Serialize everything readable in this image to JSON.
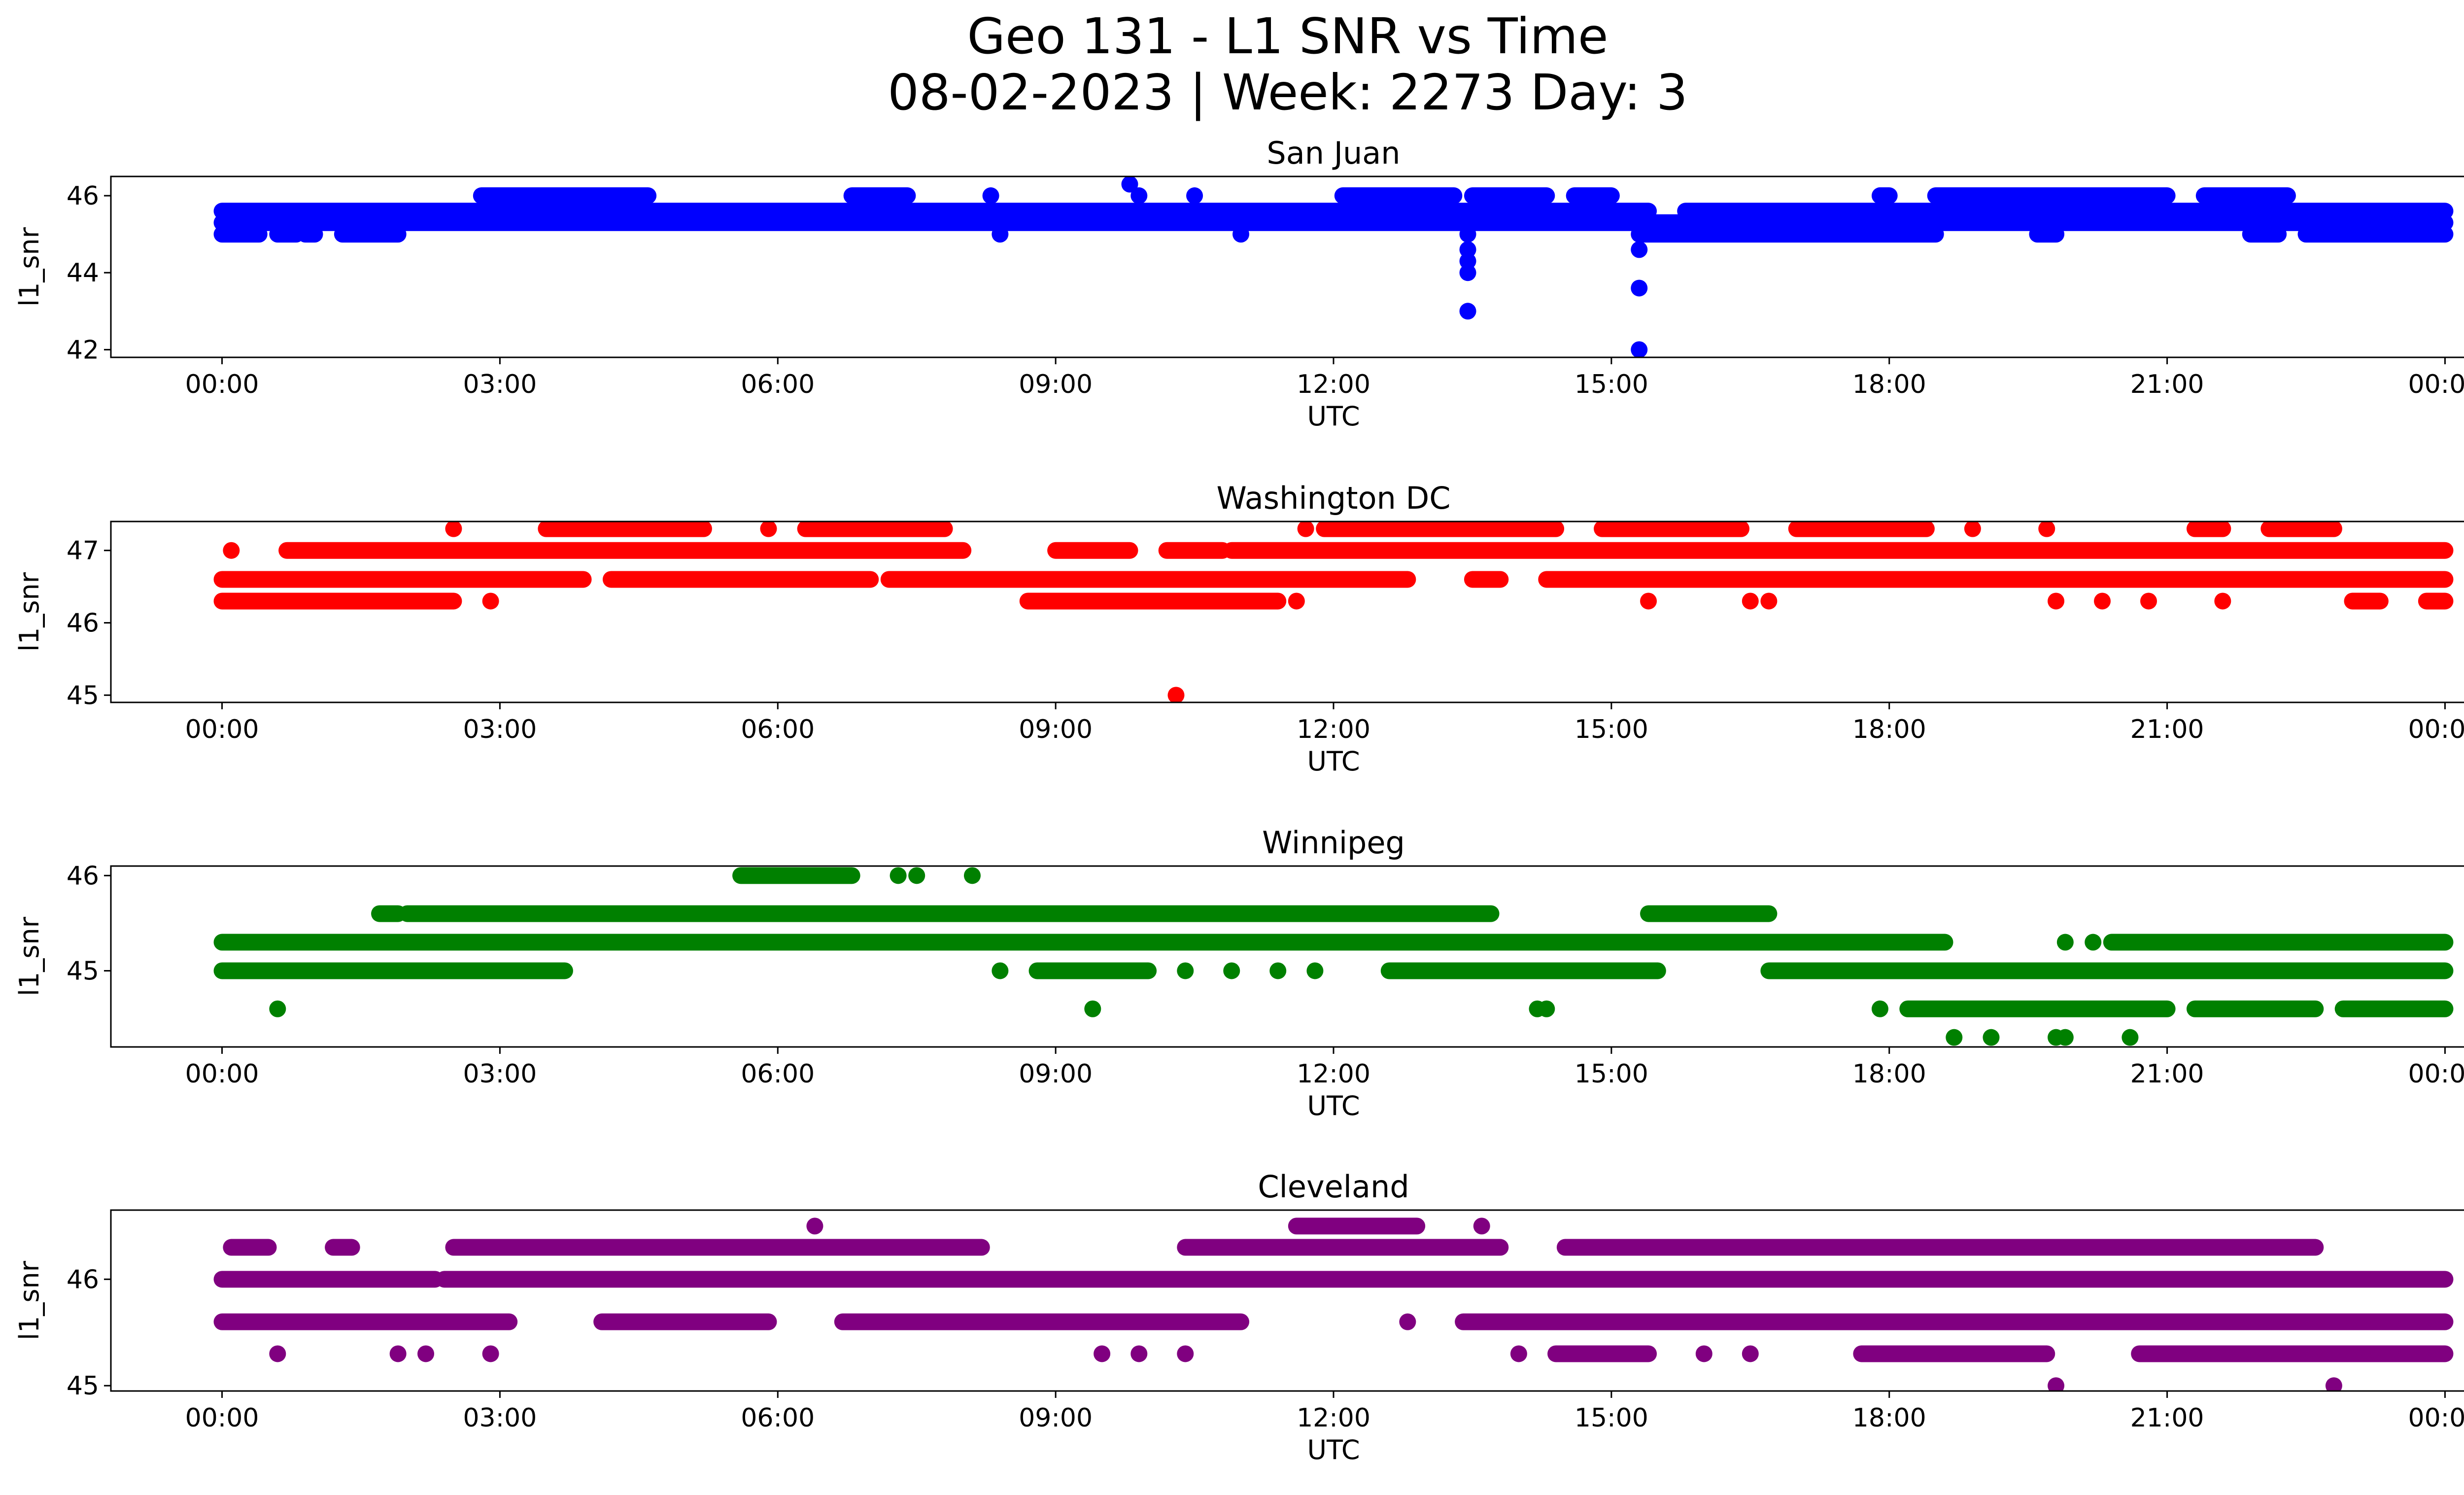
{
  "figure": {
    "title_line1": "Geo 131 - L1 SNR vs Time",
    "title_line2": "08-02-2023 | Week: 2273 Day: 3"
  },
  "chart_data": [
    {
      "type": "scatter",
      "title": "San Juan",
      "color": "#0000ff",
      "xlabel": "UTC",
      "ylabel": "l1_snr",
      "xlim_hours": [
        -1.2,
        25.2
      ],
      "ylim": [
        41.8,
        46.5
      ],
      "yticks": [
        42,
        44,
        46
      ],
      "xtick_labels": [
        "00:00",
        "03:00",
        "06:00",
        "09:00",
        "12:00",
        "15:00",
        "18:00",
        "21:00",
        "00:00"
      ],
      "bands": [
        {
          "y": 45.6,
          "segments": [
            [
              0,
              13.5
            ],
            [
              13.5,
              15.4
            ],
            [
              15.8,
              24
            ]
          ]
        },
        {
          "y": 45.3,
          "segments": [
            [
              0,
              24
            ]
          ]
        },
        {
          "y": 45.0,
          "segments": [
            [
              0,
              0.4
            ],
            [
              0.6,
              0.8
            ],
            [
              0.9,
              1.0
            ],
            [
              1.3,
              1.9
            ],
            [
              15.3,
              18.5
            ],
            [
              19.6,
              19.8
            ],
            [
              21.9,
              22.2
            ],
            [
              22.5,
              24
            ]
          ]
        },
        {
          "y": 46.0,
          "segments": [
            [
              2.8,
              4.6
            ],
            [
              6.8,
              7.4
            ],
            [
              12.1,
              13.3
            ],
            [
              13.5,
              14.3
            ],
            [
              14.6,
              15.0
            ],
            [
              17.9,
              18.0
            ],
            [
              18.5,
              21.0
            ],
            [
              21.4,
              22.3
            ]
          ]
        }
      ],
      "points": [
        [
          9.8,
          46.3
        ],
        [
          9.9,
          46.0
        ],
        [
          8.3,
          46.0
        ],
        [
          8.4,
          45.0
        ],
        [
          10.5,
          46.0
        ],
        [
          11.0,
          45.0
        ],
        [
          13.45,
          45.0
        ],
        [
          13.45,
          44.6
        ],
        [
          13.45,
          44.3
        ],
        [
          13.45,
          44.0
        ],
        [
          13.45,
          43.0
        ],
        [
          15.3,
          44.6
        ],
        [
          15.3,
          43.6
        ],
        [
          15.3,
          42.0
        ],
        [
          14.0,
          46.0
        ]
      ]
    },
    {
      "type": "scatter",
      "title": "Washington DC",
      "color": "#ff0000",
      "xlabel": "UTC",
      "ylabel": "l1_snr",
      "xlim_hours": [
        -1.2,
        25.2
      ],
      "ylim": [
        44.9,
        47.4
      ],
      "yticks": [
        45,
        46,
        47
      ],
      "xtick_labels": [
        "00:00",
        "03:00",
        "06:00",
        "09:00",
        "12:00",
        "15:00",
        "18:00",
        "21:00",
        "00:00"
      ],
      "bands": [
        {
          "y": 46.6,
          "segments": [
            [
              0,
              3.9
            ],
            [
              4.2,
              7.0
            ],
            [
              7.2,
              12.8
            ],
            [
              13.5,
              13.8
            ],
            [
              14.3,
              24
            ]
          ]
        },
        {
          "y": 46.3,
          "segments": [
            [
              0,
              2.5
            ],
            [
              8.7,
              11.4
            ],
            [
              23.0,
              23.3
            ],
            [
              23.8,
              24
            ]
          ]
        },
        {
          "y": 47.0,
          "segments": [
            [
              0.7,
              8.0
            ],
            [
              9.0,
              9.8
            ],
            [
              10.2,
              10.8
            ],
            [
              10.9,
              24
            ]
          ]
        },
        {
          "y": 47.3,
          "segments": [
            [
              3.5,
              5.2
            ],
            [
              6.3,
              7.8
            ],
            [
              11.9,
              14.4
            ],
            [
              14.9,
              16.4
            ],
            [
              17.0,
              18.4
            ],
            [
              21.3,
              21.6
            ],
            [
              22.1,
              22.8
            ]
          ]
        }
      ],
      "points": [
        [
          0.1,
          47.0
        ],
        [
          2.5,
          47.3
        ],
        [
          2.9,
          46.3
        ],
        [
          5.9,
          47.3
        ],
        [
          10.3,
          45.0
        ],
        [
          11.7,
          47.3
        ],
        [
          11.6,
          46.3
        ],
        [
          15.4,
          46.3
        ],
        [
          16.5,
          46.3
        ],
        [
          16.7,
          46.3
        ],
        [
          18.9,
          47.3
        ],
        [
          19.7,
          47.3
        ],
        [
          19.8,
          46.3
        ],
        [
          20.3,
          46.3
        ],
        [
          20.8,
          46.3
        ],
        [
          21.6,
          46.3
        ]
      ]
    },
    {
      "type": "scatter",
      "title": "Winnipeg",
      "color": "#008000",
      "xlabel": "UTC",
      "ylabel": "l1_snr",
      "xlim_hours": [
        -1.2,
        25.2
      ],
      "ylim": [
        44.2,
        46.1
      ],
      "yticks": [
        45,
        46
      ],
      "xtick_labels": [
        "00:00",
        "03:00",
        "06:00",
        "09:00",
        "12:00",
        "15:00",
        "18:00",
        "21:00",
        "00:00"
      ],
      "bands": [
        {
          "y": 45.3,
          "segments": [
            [
              0,
              18.6
            ],
            [
              20.4,
              24
            ]
          ]
        },
        {
          "y": 45.0,
          "segments": [
            [
              0,
              3.7
            ],
            [
              8.8,
              10.0
            ],
            [
              12.6,
              15.5
            ],
            [
              16.7,
              24
            ]
          ]
        },
        {
          "y": 45.6,
          "segments": [
            [
              1.7,
              1.9
            ],
            [
              2.0,
              13.7
            ],
            [
              15.4,
              16.7
            ]
          ]
        },
        {
          "y": 46.0,
          "segments": [
            [
              5.6,
              6.8
            ]
          ]
        },
        {
          "y": 44.6,
          "segments": [
            [
              18.2,
              21.0
            ],
            [
              21.3,
              22.6
            ],
            [
              22.9,
              24
            ]
          ]
        }
      ],
      "points": [
        [
          0.6,
          44.6
        ],
        [
          7.3,
          46.0
        ],
        [
          7.5,
          46.0
        ],
        [
          8.1,
          46.0
        ],
        [
          8.4,
          45.0
        ],
        [
          9.4,
          44.6
        ],
        [
          10.4,
          45.0
        ],
        [
          10.9,
          45.0
        ],
        [
          11.4,
          45.0
        ],
        [
          11.8,
          45.0
        ],
        [
          14.3,
          44.6
        ],
        [
          14.2,
          44.6
        ],
        [
          17.9,
          44.6
        ],
        [
          18.7,
          44.3
        ],
        [
          19.1,
          44.3
        ],
        [
          19.8,
          44.3
        ],
        [
          19.9,
          44.3
        ],
        [
          20.6,
          44.3
        ],
        [
          19.9,
          45.3
        ],
        [
          20.2,
          45.3
        ]
      ]
    },
    {
      "type": "scatter",
      "title": "Cleveland",
      "color": "#800080",
      "xlabel": "UTC",
      "ylabel": "l1_snr",
      "xlim_hours": [
        -1.2,
        25.2
      ],
      "ylim": [
        44.95,
        46.65
      ],
      "yticks": [
        45,
        46
      ],
      "xtick_labels": [
        "00:00",
        "03:00",
        "06:00",
        "09:00",
        "12:00",
        "15:00",
        "18:00",
        "21:00",
        "00:00"
      ],
      "bands": [
        {
          "y": 46.0,
          "segments": [
            [
              0,
              2.3
            ],
            [
              2.4,
              24
            ]
          ]
        },
        {
          "y": 45.6,
          "segments": [
            [
              0,
              3.1
            ],
            [
              4.1,
              5.9
            ],
            [
              6.7,
              11.0
            ],
            [
              13.4,
              24
            ]
          ]
        },
        {
          "y": 46.3,
          "segments": [
            [
              0.1,
              0.5
            ],
            [
              1.2,
              1.4
            ],
            [
              2.5,
              8.2
            ],
            [
              10.4,
              13.8
            ],
            [
              14.5,
              22.6
            ]
          ]
        },
        {
          "y": 45.3,
          "segments": [
            [
              14.4,
              15.4
            ],
            [
              17.7,
              19.7
            ],
            [
              20.7,
              24
            ]
          ]
        },
        {
          "y": 46.5,
          "segments": [
            [
              11.6,
              12.9
            ]
          ]
        }
      ],
      "points": [
        [
          0.6,
          45.3
        ],
        [
          1.9,
          45.3
        ],
        [
          2.2,
          45.3
        ],
        [
          2.9,
          45.3
        ],
        [
          6.4,
          46.5
        ],
        [
          9.5,
          45.3
        ],
        [
          9.9,
          45.3
        ],
        [
          10.4,
          45.3
        ],
        [
          13.6,
          46.5
        ],
        [
          12.8,
          45.6
        ],
        [
          14.0,
          45.3
        ],
        [
          16.0,
          45.3
        ],
        [
          16.5,
          45.3
        ],
        [
          19.8,
          45.0
        ],
        [
          22.8,
          45.0
        ],
        [
          21.4,
          45.3
        ]
      ]
    }
  ]
}
